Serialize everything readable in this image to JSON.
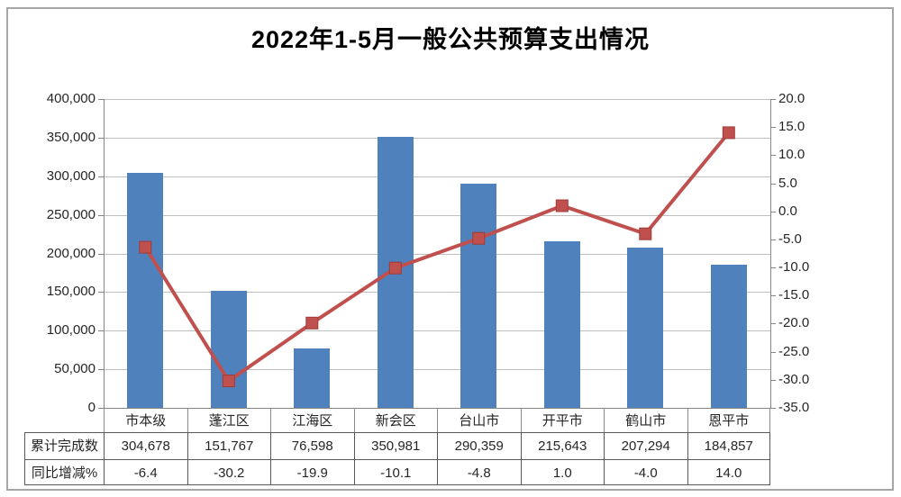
{
  "chart_data": {
    "type": "bar+line",
    "title": "2022年1-5月一般公共预算支出情况",
    "categories": [
      "市本级",
      "蓬江区",
      "江海区",
      "新会区",
      "台山市",
      "开平市",
      "鹤山市",
      "恩平市"
    ],
    "series": [
      {
        "name": "累计完成数",
        "type": "bar",
        "axis": "left",
        "values": [
          304678,
          151767,
          76598,
          350981,
          290359,
          215643,
          207294,
          184857
        ],
        "labels": [
          "304,678",
          "151,767",
          "76,598",
          "350,981",
          "290,359",
          "215,643",
          "207,294",
          "184,857"
        ]
      },
      {
        "name": "同比增减%",
        "type": "line",
        "axis": "right",
        "values": [
          -6.4,
          -30.2,
          -19.9,
          -10.1,
          -4.8,
          1.0,
          -4.0,
          14.0
        ],
        "labels": [
          "-6.4",
          "-30.2",
          "-19.9",
          "-10.1",
          "-4.8",
          "1.0",
          "-4.0",
          "14.0"
        ]
      }
    ],
    "left_axis": {
      "min": 0,
      "max": 400000,
      "step": 50000,
      "tick_labels": [
        "400,000",
        "350,000",
        "300,000",
        "250,000",
        "200,000",
        "150,000",
        "100,000",
        "50,000",
        "0"
      ]
    },
    "right_axis": {
      "min": -35,
      "max": 20,
      "step": 5,
      "tick_labels": [
        "20.0",
        "15.0",
        "10.0",
        "5.0",
        "0.0",
        "-5.0",
        "-10.0",
        "-15.0",
        "-20.0",
        "-25.0",
        "-30.0",
        "-35.0"
      ]
    },
    "grid": true,
    "legend": "none",
    "data_table_shown": true
  },
  "colors": {
    "bar": "#4F81BD",
    "line": "#C0504D",
    "marker": "#C0504D",
    "gridline": "#BFBFBF",
    "axis": "#868686",
    "cat_separator": "#8C8C8C",
    "table_border": "#595959",
    "outer_border": "#A6A6A6",
    "text": "#262626",
    "title_text": "#000000",
    "background": "#FFFFFF"
  }
}
